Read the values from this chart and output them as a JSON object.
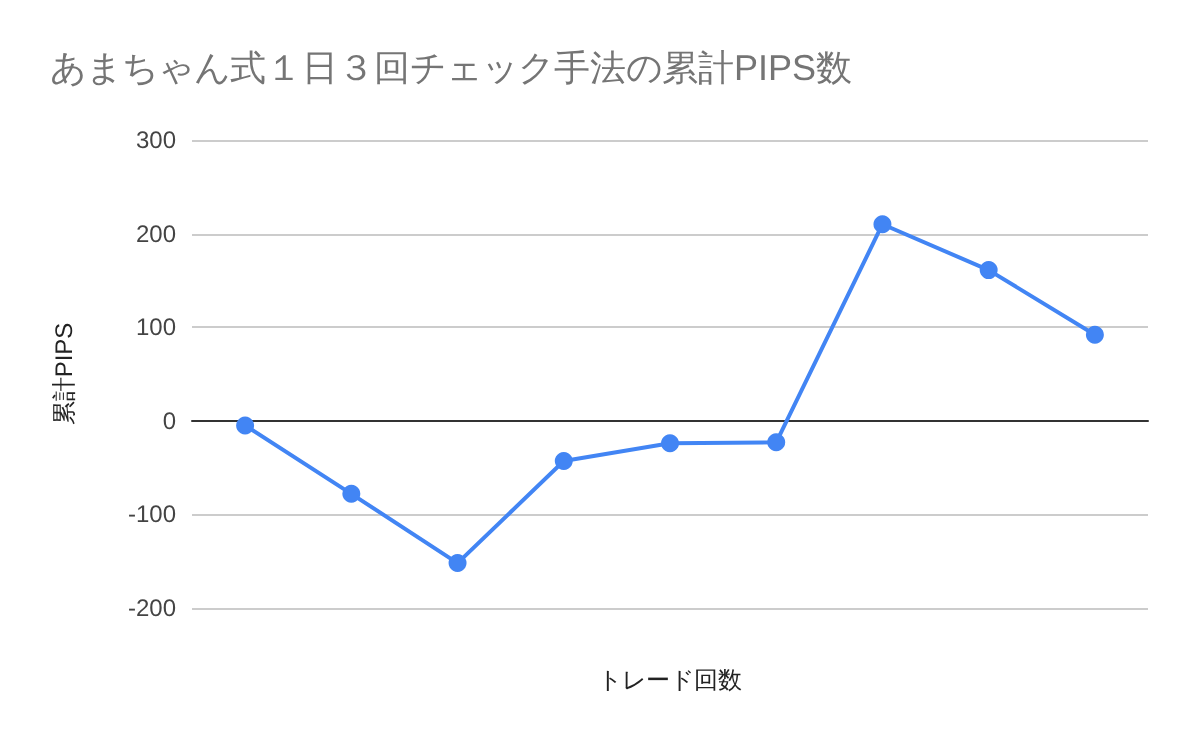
{
  "chart_data": {
    "type": "line",
    "title": "あまちゃん式１日３回チェック手法の累計PIPS数",
    "xlabel": "トレード回数",
    "ylabel": "累計PIPS",
    "categories": [
      null,
      null,
      null,
      null,
      null,
      null,
      null,
      null,
      null
    ],
    "series": [
      {
        "color": "#4285f4",
        "values": [
          -5,
          -78,
          -152,
          -43,
          -24,
          -23,
          210,
          161,
          92
        ]
      }
    ],
    "ylim": [
      -200,
      300
    ],
    "yticks": [
      -200,
      -100,
      0,
      100,
      200,
      300
    ],
    "grid": "y",
    "marker": "circle",
    "line_style": "solid"
  }
}
